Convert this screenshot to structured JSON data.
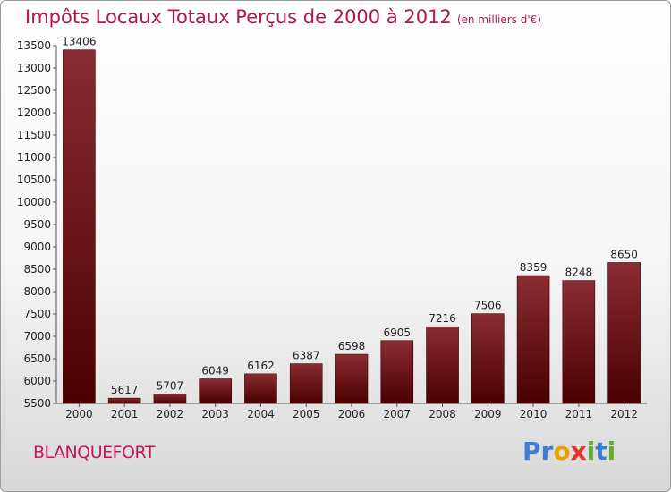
{
  "chart_data": {
    "type": "bar",
    "title": "Impôts Locaux Totaux Perçus de 2000 à 2012",
    "subtitle": "(en milliers d'€)",
    "categories": [
      "2000",
      "2001",
      "2002",
      "2003",
      "2004",
      "2005",
      "2006",
      "2007",
      "2008",
      "2009",
      "2010",
      "2011",
      "2012"
    ],
    "values": [
      13406,
      5617,
      5707,
      6049,
      6162,
      6387,
      6598,
      6905,
      7216,
      7506,
      8359,
      8248,
      8650
    ],
    "yticks": [
      5500,
      6000,
      6500,
      7000,
      7500,
      8000,
      8500,
      9000,
      9500,
      10000,
      10500,
      11000,
      11500,
      12000,
      12500,
      13000,
      13500
    ],
    "ylim": [
      5500,
      13500
    ],
    "xlabel": "",
    "ylabel": "",
    "grid": false,
    "colors": {
      "bar_top": "#8a2c33",
      "bar_bottom": "#4a0000",
      "title": "#b0174d"
    }
  },
  "footer": {
    "location": "BLANQUEFORT",
    "logo_letters": [
      "P",
      "r",
      "o",
      "x",
      "i",
      "t",
      "i"
    ],
    "logo_colors": [
      "#3b7fd4",
      "#3b7fd4",
      "#e8a200",
      "#e8302a",
      "#63b030",
      "#3b7fd4",
      "#63b030"
    ]
  }
}
